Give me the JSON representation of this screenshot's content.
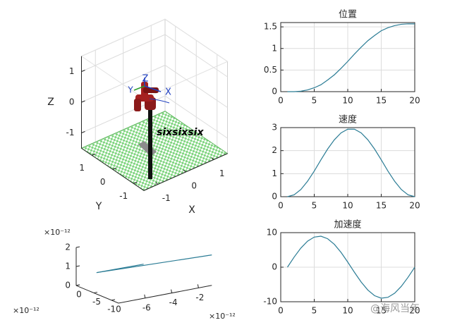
{
  "chart_data": [
    {
      "type": "robot3d",
      "xlim": [
        -1.5,
        1.5
      ],
      "ylim": [
        -1.5,
        1.5
      ],
      "zlim": [
        -1.5,
        1.5
      ],
      "xticks": [
        -1,
        0,
        1
      ],
      "yticks": [
        -1,
        0,
        1
      ],
      "zticks": [
        -1,
        0,
        1
      ],
      "xlabel": "X",
      "ylabel": "Y",
      "zlabel": "Z",
      "annotation": "sixsixsix",
      "frame_labels": [
        "X",
        "Y",
        "Z"
      ],
      "grid": true
    },
    {
      "type": "line3d",
      "xlim": [
        -8,
        -1
      ],
      "ylim": [
        -12,
        0
      ],
      "zlim": [
        0,
        2
      ],
      "xticks": [
        -6,
        -4,
        -2
      ],
      "yticks": [
        -10,
        -5,
        0
      ],
      "zticks": [
        0,
        1,
        2
      ],
      "x_exponent": "×10⁻¹²",
      "y_exponent": "×10⁻¹²",
      "z_exponent": "×10⁻¹²",
      "series": [
        {
          "color": "#2b7c95",
          "x": [
            -7,
            -1
          ],
          "y": [
            -2,
            -12
          ],
          "z": [
            0.7,
            1.6
          ]
        },
        {
          "color": "#2b7c95",
          "x": [
            -7,
            -4
          ],
          "y": [
            -2,
            -4
          ],
          "z": [
            0.7,
            0.9
          ]
        }
      ]
    },
    {
      "type": "line",
      "title": "位置",
      "x": [
        1,
        2,
        3,
        4,
        5,
        6,
        7,
        8,
        9,
        10,
        11,
        12,
        13,
        14,
        15,
        16,
        17,
        18,
        19,
        20
      ],
      "series": [
        {
          "color": "#2b7c95",
          "values": [
            0,
            0.0,
            0.01,
            0.04,
            0.09,
            0.16,
            0.27,
            0.39,
            0.54,
            0.7,
            0.87,
            1.03,
            1.18,
            1.3,
            1.41,
            1.48,
            1.53,
            1.56,
            1.57,
            1.57
          ]
        }
      ],
      "xlim": [
        0,
        20
      ],
      "xticks": [
        0,
        5,
        10,
        15,
        20
      ],
      "ylim": [
        0,
        1.6
      ],
      "yticks": [
        0,
        0.5,
        1,
        1.5
      ],
      "grid": true
    },
    {
      "type": "line",
      "title": "速度",
      "x": [
        1,
        2,
        3,
        4,
        5,
        6,
        7,
        8,
        9,
        10,
        11,
        12,
        13,
        14,
        15,
        16,
        17,
        18,
        19,
        20
      ],
      "series": [
        {
          "color": "#2b7c95",
          "values": [
            0,
            0.08,
            0.31,
            0.67,
            1.11,
            1.6,
            2.07,
            2.47,
            2.77,
            2.93,
            2.93,
            2.77,
            2.47,
            2.07,
            1.6,
            1.11,
            0.67,
            0.31,
            0.08,
            0
          ]
        }
      ],
      "xlim": [
        0,
        20
      ],
      "xticks": [
        0,
        5,
        10,
        15,
        20
      ],
      "ylim": [
        0,
        3
      ],
      "yticks": [
        0,
        1,
        2,
        3
      ],
      "grid": true
    },
    {
      "type": "line",
      "title": "加速度",
      "x": [
        1,
        2,
        3,
        4,
        5,
        6,
        7,
        8,
        9,
        10,
        11,
        12,
        13,
        14,
        15,
        16,
        17,
        18,
        19,
        20
      ],
      "series": [
        {
          "color": "#2b7c95",
          "values": [
            0,
            2.92,
            5.53,
            7.53,
            8.72,
            8.97,
            8.24,
            6.62,
            4.28,
            1.48,
            -1.48,
            -4.28,
            -6.62,
            -8.24,
            -8.97,
            -8.72,
            -7.53,
            -5.53,
            -2.92,
            0
          ]
        }
      ],
      "xlim": [
        0,
        20
      ],
      "xticks": [
        0,
        5,
        10,
        15,
        20
      ],
      "ylim": [
        -10,
        10
      ],
      "yticks": [
        -10,
        0,
        10
      ],
      "grid": true
    }
  ],
  "watermark": "@海风当年"
}
